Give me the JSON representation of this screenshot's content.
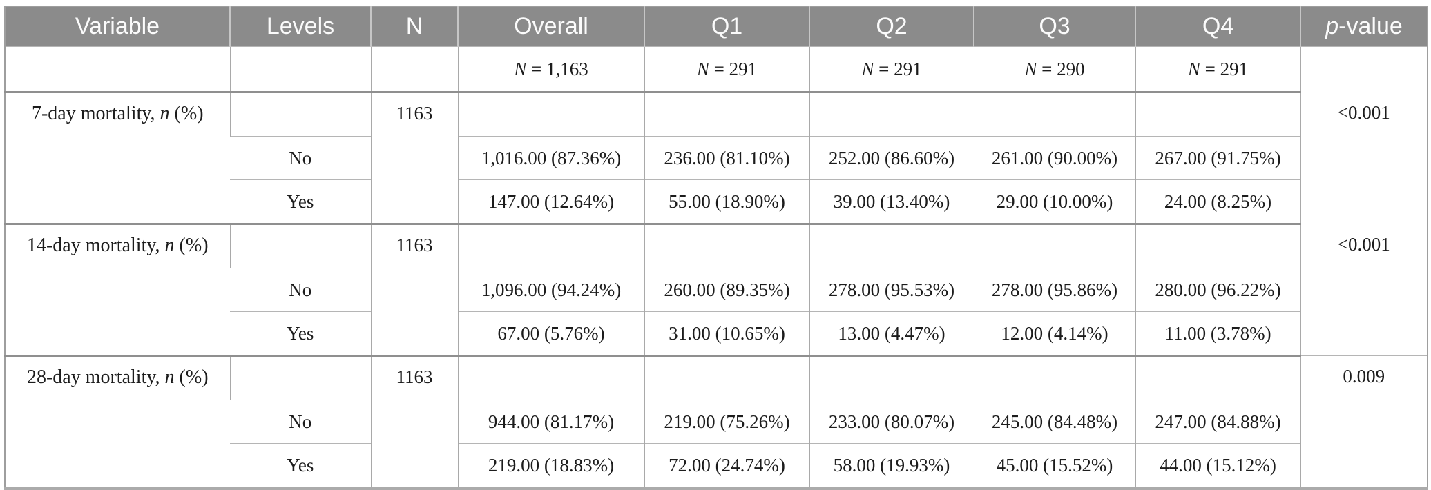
{
  "header": {
    "columns": [
      "Variable",
      "Levels",
      "N",
      "Overall",
      "Q1",
      "Q2",
      "Q3",
      "Q4"
    ],
    "pvalue": {
      "italic": "p",
      "rest": "-value"
    },
    "bg_color": "#8b8b8b",
    "text_color": "#fbfbfb"
  },
  "subheader": {
    "overall": {
      "italic": "N",
      "rest": " = 1,163"
    },
    "q1": {
      "italic": "N",
      "rest": " = 291"
    },
    "q2": {
      "italic": "N",
      "rest": " = 291"
    },
    "q3": {
      "italic": "N",
      "rest": " = 290"
    },
    "q4": {
      "italic": "N",
      "rest": " = 291"
    }
  },
  "blocks": [
    {
      "variable": {
        "prefix": "7-day mortality, ",
        "italic": "n",
        "suffix": " (%)"
      },
      "n": "1163",
      "pvalue": "<0.001",
      "levels": [
        {
          "level": "No",
          "overall": "1,016.00 (87.36%)",
          "q1": "236.00 (81.10%)",
          "q2": "252.00 (86.60%)",
          "q3": "261.00 (90.00%)",
          "q4": "267.00 (91.75%)"
        },
        {
          "level": "Yes",
          "overall": "147.00 (12.64%)",
          "q1": "55.00 (18.90%)",
          "q2": "39.00 (13.40%)",
          "q3": "29.00 (10.00%)",
          "q4": "24.00 (8.25%)"
        }
      ]
    },
    {
      "variable": {
        "prefix": "14-day mortality, ",
        "italic": "n",
        "suffix": " (%)"
      },
      "n": "1163",
      "pvalue": "<0.001",
      "levels": [
        {
          "level": "No",
          "overall": "1,096.00 (94.24%)",
          "q1": "260.00 (89.35%)",
          "q2": "278.00 (95.53%)",
          "q3": "278.00 (95.86%)",
          "q4": "280.00 (96.22%)"
        },
        {
          "level": "Yes",
          "overall": "67.00 (5.76%)",
          "q1": "31.00 (10.65%)",
          "q2": "13.00 (4.47%)",
          "q3": "12.00 (4.14%)",
          "q4": "11.00 (3.78%)"
        }
      ]
    },
    {
      "variable": {
        "prefix": "28-day mortality, ",
        "italic": "n",
        "suffix": " (%)"
      },
      "n": "1163",
      "pvalue": "0.009",
      "levels": [
        {
          "level": "No",
          "overall": "944.00 (81.17%)",
          "q1": "219.00 (75.26%)",
          "q2": "233.00 (80.07%)",
          "q3": "245.00 (84.48%)",
          "q4": "247.00 (84.88%)"
        },
        {
          "level": "Yes",
          "overall": "219.00 (18.83%)",
          "q1": "72.00 (24.74%)",
          "q2": "58.00 (19.93%)",
          "q3": "45.00 (15.52%)",
          "q4": "44.00 (15.12%)"
        }
      ]
    }
  ]
}
